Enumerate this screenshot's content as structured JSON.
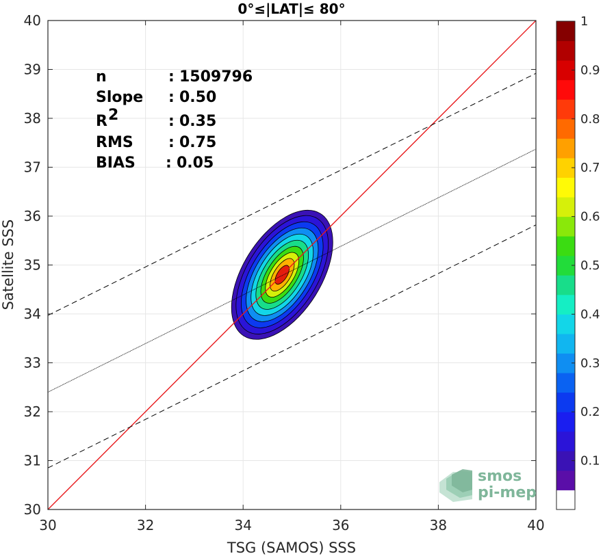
{
  "chart_data": {
    "type": "heatmap",
    "title": "0°≤|LAT|≤ 80°",
    "xlabel": "TSG (SAMOS) SSS",
    "ylabel": "Satellite SSS",
    "xlim": [
      30,
      40
    ],
    "ylim": [
      30,
      40
    ],
    "xticks": [
      "30",
      "32",
      "34",
      "36",
      "38",
      "40"
    ],
    "yticks": [
      "30",
      "31",
      "32",
      "33",
      "34",
      "35",
      "36",
      "37",
      "38",
      "39",
      "40"
    ],
    "grid": true,
    "stats": [
      {
        "label": "n",
        "sep": ": ",
        "value": "1509796"
      },
      {
        "label": "Slope",
        "sep": ": ",
        "value": "0.50"
      },
      {
        "label": "R",
        "sup": "2",
        "sep": ": ",
        "value": "0.35"
      },
      {
        "label": "RMS",
        "sep": ": ",
        "value": "0.75"
      },
      {
        "label": "BIAS",
        "sep": ": ",
        "value": "0.05"
      }
    ],
    "reference_lines": [
      {
        "kind": "identity",
        "color": "#e8191c",
        "style": "solid",
        "x": [
          30,
          40
        ],
        "y": [
          30,
          40
        ]
      },
      {
        "kind": "regression",
        "color": "#000000",
        "style": "dotted",
        "x": [
          30,
          40
        ],
        "y": [
          32.4,
          37.37
        ]
      },
      {
        "kind": "upper-bound",
        "color": "#000000",
        "style": "dashed",
        "x": [
          30,
          40
        ],
        "y": [
          33.97,
          38.92
        ]
      },
      {
        "kind": "lower-bound",
        "color": "#000000",
        "style": "dashed",
        "x": [
          30,
          40
        ],
        "y": [
          30.85,
          35.82
        ]
      }
    ],
    "density_contours": {
      "center": [
        34.8,
        34.8
      ],
      "angle_deg": 58,
      "levels": [
        0.05,
        0.1,
        0.2,
        0.3,
        0.4,
        0.5,
        0.6,
        0.7,
        0.8,
        0.9
      ],
      "major_axis": [
        1.48,
        1.36,
        1.22,
        1.08,
        0.94,
        0.8,
        0.66,
        0.52,
        0.38,
        0.22
      ],
      "minor_axis": [
        0.8,
        0.72,
        0.63,
        0.55,
        0.47,
        0.39,
        0.31,
        0.24,
        0.17,
        0.1
      ],
      "colors": [
        "#3a12b5",
        "#2b14d8",
        "#0c3af0",
        "#0f8ef2",
        "#13d6e8",
        "#18dd8a",
        "#3bdc12",
        "#d6f00a",
        "#ffb000",
        "#e31e0a"
      ]
    },
    "colorbar": {
      "range": [
        0,
        1
      ],
      "ticks": [
        "0.1",
        "0.2",
        "0.3",
        "0.4",
        "0.5",
        "0.6",
        "0.7",
        "0.8",
        "0.9",
        "1"
      ],
      "colors": [
        "#ffffff",
        "#5a0ea8",
        "#3a12b5",
        "#2b14d8",
        "#1a1ef0",
        "#0c3af0",
        "#0a62f2",
        "#0f8ef2",
        "#11b6f0",
        "#13d6e8",
        "#15eec4",
        "#18dd8a",
        "#22dc3a",
        "#3bdc12",
        "#8ae80a",
        "#d6f00a",
        "#fffa06",
        "#ffd200",
        "#ffa000",
        "#ff6a00",
        "#ff3a0a",
        "#ff0a0a",
        "#d80000",
        "#b10000",
        "#850000"
      ]
    },
    "logo": {
      "line1": "smos",
      "line2": "pi-mep"
    }
  }
}
